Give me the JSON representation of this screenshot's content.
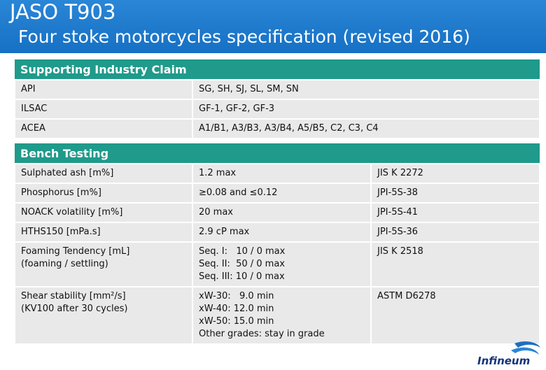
{
  "header": {
    "title": "JASO T903",
    "subtitle": "Four stoke motorcycles specification (revised 2016)"
  },
  "tables": [
    {
      "title": "Supporting Industry Claim",
      "rows": [
        [
          "API",
          "SG, SH, SJ, SL, SM, SN"
        ],
        [
          "ILSAC",
          "GF-1, GF-2, GF-3"
        ],
        [
          "ACEA",
          "A1/B1, A3/B3, A3/B4, A5/B5, C2, C3, C4"
        ]
      ]
    },
    {
      "title": "Bench Testing",
      "rows": [
        [
          "Sulphated ash [m%]",
          "1.2 max",
          "JIS K 2272"
        ],
        [
          "Phosphorus [m%]",
          "≥0.08 and ≤0.12",
          "JPI-5S-38"
        ],
        [
          "NOACK volatility [m%]",
          "20 max",
          "JPI-5S-41"
        ],
        [
          "HTHS150 [mPa.s]",
          "2.9 cP max",
          "JPI-5S-36"
        ],
        [
          [
            "Foaming Tendency [mL]",
            "(foaming / settling)"
          ],
          [
            "Seq. I:   10 / 0 max",
            "Seq. II:  50 / 0 max",
            "Seq. III: 10 / 0 max"
          ],
          "JIS K 2518"
        ],
        [
          [
            "Shear stability [mm²/s]",
            "(KV100 after 30 cycles)"
          ],
          [
            "xW-30:   9.0 min",
            "xW-40: 12.0 min",
            "xW-50: 15.0 min",
            "Other grades: stay in grade"
          ],
          "ASTM D6278"
        ]
      ]
    }
  ],
  "logo": {
    "text": "Infineum"
  }
}
